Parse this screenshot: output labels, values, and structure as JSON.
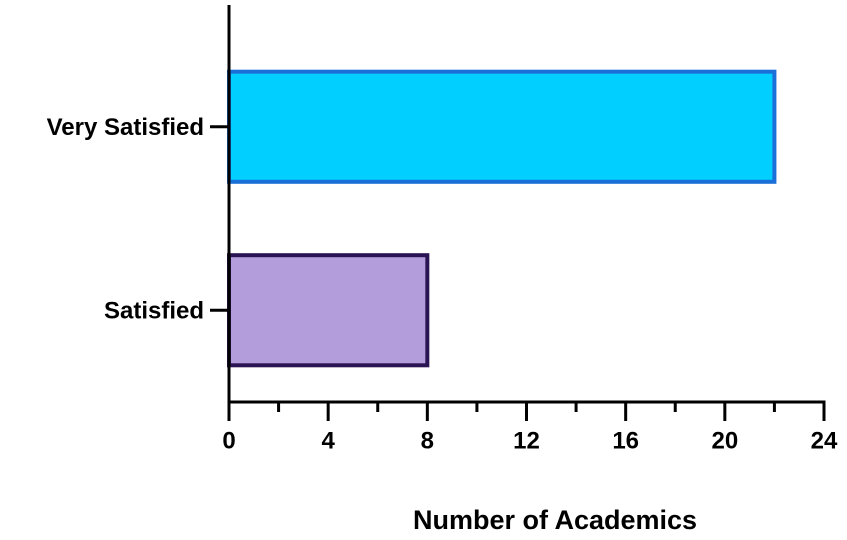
{
  "chart_data": {
    "type": "barh",
    "categories": [
      "Very Satisfied",
      "Satisfied"
    ],
    "values": [
      22,
      8
    ],
    "colors": [
      "#00cfff",
      "#b39ddb"
    ],
    "edgecolors": [
      "#1a6fd8",
      "#2a1454"
    ],
    "xlabel": "Number of Academics",
    "xlim": [
      0,
      24
    ],
    "xticks": [
      0,
      4,
      8,
      12,
      16,
      20,
      24
    ],
    "xminorticks": [
      2,
      6,
      10,
      14,
      18,
      22
    ],
    "grid": false
  }
}
